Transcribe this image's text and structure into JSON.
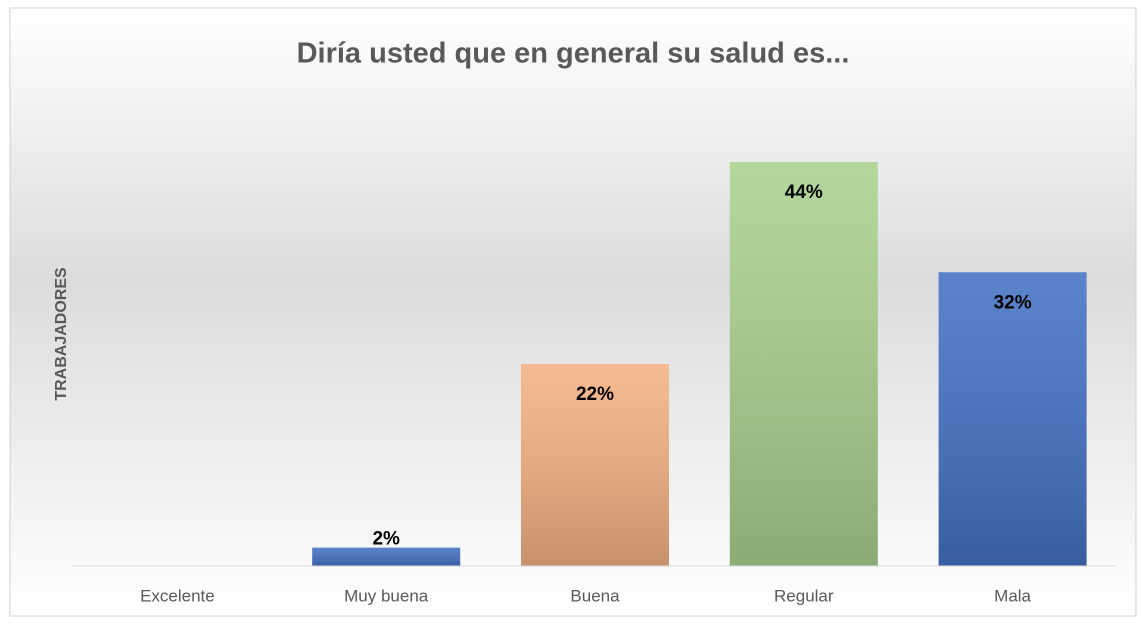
{
  "chart_data": {
    "type": "bar",
    "title": "Diría usted que en general su salud es...",
    "y_label": "TRABAJADORES",
    "categories": [
      "Excelente",
      "Muy buena",
      "Buena",
      "Regular",
      "Mala"
    ],
    "values": [
      0,
      2,
      22,
      44,
      32
    ],
    "value_labels": [
      null,
      "2%",
      "22%",
      "44%",
      "32%"
    ],
    "colors": [
      "#4472c4",
      "#4472c4",
      "#f4b183",
      "#a9d18e",
      "#4472c4"
    ],
    "ylim": [
      0,
      50
    ]
  }
}
